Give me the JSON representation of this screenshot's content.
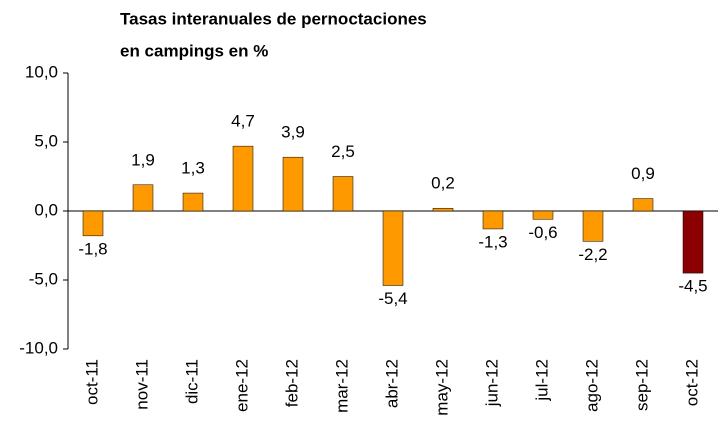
{
  "chart_data": {
    "type": "bar",
    "title": [
      "Tasas interanuales de pernoctaciones",
      "en campings en  %"
    ],
    "categories": [
      "oct-11",
      "nov-11",
      "dic-11",
      "ene-12",
      "feb-12",
      "mar-12",
      "abr-12",
      "may-12",
      "jun-12",
      "jul-12",
      "ago-12",
      "sep-12",
      "oct-12"
    ],
    "values": [
      -1.8,
      1.9,
      1.3,
      4.7,
      3.9,
      2.5,
      -5.4,
      0.2,
      -1.3,
      -0.6,
      -2.2,
      0.9,
      -4.5
    ],
    "value_labels": [
      "-1,8",
      "1,9",
      "1,3",
      "4,7",
      "3,9",
      "2,5",
      "-5,4",
      "0,2",
      "-1,3",
      "-0,6",
      "-2,2",
      "0,9",
      "-4,5"
    ],
    "colors": [
      "#ff9900",
      "#ff9900",
      "#ff9900",
      "#ff9900",
      "#ff9900",
      "#ff9900",
      "#ff9900",
      "#ff9900",
      "#ff9900",
      "#ff9900",
      "#ff9900",
      "#ff9900",
      "#8b0000"
    ],
    "ylim": [
      -10,
      10
    ],
    "yticks": [
      {
        "value": -10,
        "label": "-10,0"
      },
      {
        "value": -5,
        "label": "-5,0"
      },
      {
        "value": 0,
        "label": "0,0"
      },
      {
        "value": 5,
        "label": "5,0"
      },
      {
        "value": 10,
        "label": "10,0"
      }
    ],
    "grid": false
  }
}
